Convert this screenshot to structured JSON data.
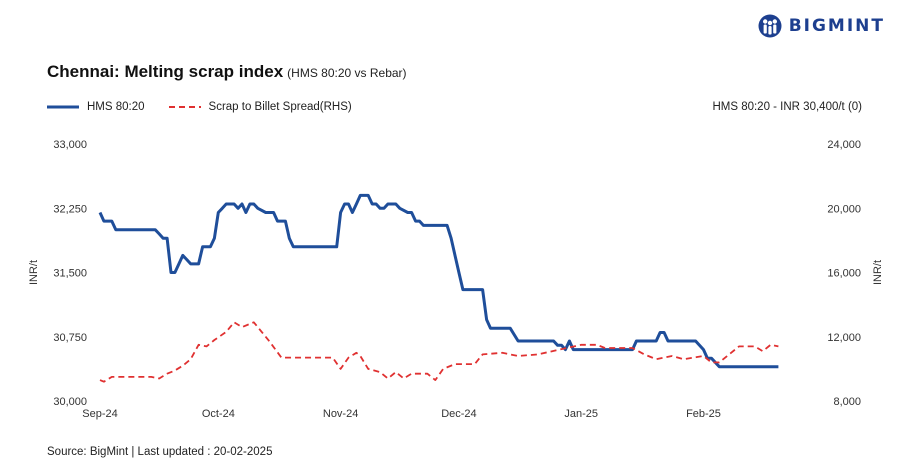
{
  "brand": {
    "name": "BIGMINT",
    "logo_icon": "bigmint-logo-icon",
    "color": "#1d3f8f"
  },
  "header": {
    "title": "Chennai: Melting scrap index",
    "subtitle": "(HMS 80:20  vs Rebar)"
  },
  "legend": {
    "series1": "HMS 80:20",
    "series2": "Scrap to Billet Spread(RHS)",
    "current_value": "HMS 80:20 - INR 30,400/t (0)"
  },
  "footer": {
    "source": "Source: BigMint | Last updated : 20-02-2025"
  },
  "chart_data": {
    "type": "line",
    "left_axis": {
      "label": "INR/t",
      "range": [
        30000,
        33000
      ],
      "ticks": [
        "30,000",
        "30,750",
        "31,500",
        "32,250",
        "33,000"
      ]
    },
    "right_axis": {
      "label": "INR/t",
      "range": [
        8000,
        24000
      ],
      "ticks": [
        "8,000",
        "12,000",
        "16,000",
        "20,000",
        "24,000"
      ]
    },
    "x_axis": {
      "range": [
        "2024-09-01",
        "2025-02-28"
      ],
      "ticks": [
        {
          "label": "Sep-24",
          "date": "2024-09-01"
        },
        {
          "label": "Oct-24",
          "date": "2024-10-01"
        },
        {
          "label": "Nov-24",
          "date": "2024-11-01"
        },
        {
          "label": "Dec-24",
          "date": "2024-12-01"
        },
        {
          "label": "Jan-25",
          "date": "2025-01-01"
        },
        {
          "label": "Feb-25",
          "date": "2025-02-01"
        }
      ]
    },
    "grid": false,
    "legend_position": "top-left",
    "series": [
      {
        "name": "HMS 80:20",
        "axis": "left",
        "color": "#1f4e9a",
        "style": "solid",
        "points": [
          [
            "2024-09-01",
            32200
          ],
          [
            "2024-09-02",
            32100
          ],
          [
            "2024-09-04",
            32100
          ],
          [
            "2024-09-05",
            32000
          ],
          [
            "2024-09-07",
            32000
          ],
          [
            "2024-09-14",
            32000
          ],
          [
            "2024-09-15",
            32000
          ],
          [
            "2024-09-16",
            31950
          ],
          [
            "2024-09-17",
            31900
          ],
          [
            "2024-09-18",
            31900
          ],
          [
            "2024-09-19",
            31500
          ],
          [
            "2024-09-20",
            31500
          ],
          [
            "2024-09-21",
            31600
          ],
          [
            "2024-09-22",
            31700
          ],
          [
            "2024-09-23",
            31650
          ],
          [
            "2024-09-24",
            31600
          ],
          [
            "2024-09-25",
            31600
          ],
          [
            "2024-09-26",
            31600
          ],
          [
            "2024-09-27",
            31800
          ],
          [
            "2024-09-28",
            31800
          ],
          [
            "2024-09-29",
            31800
          ],
          [
            "2024-09-30",
            31900
          ],
          [
            "2024-10-01",
            32200
          ],
          [
            "2024-10-02",
            32250
          ],
          [
            "2024-10-03",
            32300
          ],
          [
            "2024-10-04",
            32300
          ],
          [
            "2024-10-05",
            32300
          ],
          [
            "2024-10-06",
            32250
          ],
          [
            "2024-10-07",
            32300
          ],
          [
            "2024-10-08",
            32200
          ],
          [
            "2024-10-09",
            32300
          ],
          [
            "2024-10-10",
            32300
          ],
          [
            "2024-10-11",
            32250
          ],
          [
            "2024-10-13",
            32200
          ],
          [
            "2024-10-15",
            32200
          ],
          [
            "2024-10-16",
            32100
          ],
          [
            "2024-10-18",
            32100
          ],
          [
            "2024-10-19",
            31900
          ],
          [
            "2024-10-20",
            31800
          ],
          [
            "2024-10-22",
            31800
          ],
          [
            "2024-10-30",
            31800
          ],
          [
            "2024-10-31",
            31800
          ],
          [
            "2024-11-01",
            32200
          ],
          [
            "2024-11-02",
            32300
          ],
          [
            "2024-11-03",
            32300
          ],
          [
            "2024-11-04",
            32200
          ],
          [
            "2024-11-05",
            32300
          ],
          [
            "2024-11-06",
            32400
          ],
          [
            "2024-11-07",
            32400
          ],
          [
            "2024-11-08",
            32400
          ],
          [
            "2024-11-09",
            32300
          ],
          [
            "2024-11-10",
            32300
          ],
          [
            "2024-11-11",
            32250
          ],
          [
            "2024-11-12",
            32250
          ],
          [
            "2024-11-13",
            32300
          ],
          [
            "2024-11-14",
            32300
          ],
          [
            "2024-11-15",
            32300
          ],
          [
            "2024-11-16",
            32250
          ],
          [
            "2024-11-18",
            32200
          ],
          [
            "2024-11-19",
            32200
          ],
          [
            "2024-11-20",
            32100
          ],
          [
            "2024-11-21",
            32100
          ],
          [
            "2024-11-22",
            32050
          ],
          [
            "2024-11-23",
            32050
          ],
          [
            "2024-11-28",
            32050
          ],
          [
            "2024-11-29",
            31900
          ],
          [
            "2024-11-30",
            31700
          ],
          [
            "2024-12-01",
            31500
          ],
          [
            "2024-12-02",
            31300
          ],
          [
            "2024-12-03",
            31300
          ],
          [
            "2024-12-07",
            31300
          ],
          [
            "2024-12-08",
            30950
          ],
          [
            "2024-12-09",
            30850
          ],
          [
            "2024-12-10",
            30850
          ],
          [
            "2024-12-11",
            30850
          ],
          [
            "2024-12-14",
            30850
          ],
          [
            "2024-12-16",
            30700
          ],
          [
            "2024-12-20",
            30700
          ],
          [
            "2024-12-24",
            30700
          ],
          [
            "2024-12-25",
            30700
          ],
          [
            "2024-12-26",
            30650
          ],
          [
            "2024-12-27",
            30650
          ],
          [
            "2024-12-28",
            30600
          ],
          [
            "2024-12-29",
            30700
          ],
          [
            "2024-12-30",
            30600
          ],
          [
            "2025-01-01",
            30600
          ],
          [
            "2025-01-06",
            30600
          ],
          [
            "2025-01-14",
            30600
          ],
          [
            "2025-01-15",
            30700
          ],
          [
            "2025-01-18",
            30700
          ],
          [
            "2025-01-20",
            30700
          ],
          [
            "2025-01-21",
            30800
          ],
          [
            "2025-01-22",
            30800
          ],
          [
            "2025-01-23",
            30700
          ],
          [
            "2025-01-25",
            30700
          ],
          [
            "2025-01-28",
            30700
          ],
          [
            "2025-01-30",
            30700
          ],
          [
            "2025-02-01",
            30600
          ],
          [
            "2025-02-02",
            30500
          ],
          [
            "2025-02-03",
            30500
          ],
          [
            "2025-02-05",
            30400
          ],
          [
            "2025-02-06",
            30400
          ],
          [
            "2025-02-08",
            30400
          ],
          [
            "2025-02-20",
            30400
          ]
        ]
      },
      {
        "name": "Scrap to Billet Spread(RHS)",
        "axis": "right",
        "color": "#e03131",
        "style": "dashed",
        "points": [
          [
            "2024-09-01",
            9300
          ],
          [
            "2024-09-02",
            9200
          ],
          [
            "2024-09-04",
            9500
          ],
          [
            "2024-09-14",
            9500
          ],
          [
            "2024-09-16",
            9400
          ],
          [
            "2024-09-18",
            9700
          ],
          [
            "2024-09-20",
            9900
          ],
          [
            "2024-09-22",
            10200
          ],
          [
            "2024-09-24",
            10600
          ],
          [
            "2024-09-26",
            11500
          ],
          [
            "2024-09-28",
            11400
          ],
          [
            "2024-09-30",
            11800
          ],
          [
            "2024-10-03",
            12300
          ],
          [
            "2024-10-05",
            12900
          ],
          [
            "2024-10-07",
            12600
          ],
          [
            "2024-10-10",
            12900
          ],
          [
            "2024-10-12",
            12300
          ],
          [
            "2024-10-14",
            11700
          ],
          [
            "2024-10-17",
            10700
          ],
          [
            "2024-10-24",
            10700
          ],
          [
            "2024-10-30",
            10700
          ],
          [
            "2024-11-01",
            10000
          ],
          [
            "2024-11-03",
            10700
          ],
          [
            "2024-11-05",
            11000
          ],
          [
            "2024-11-06",
            10800
          ],
          [
            "2024-11-08",
            10000
          ],
          [
            "2024-11-11",
            9800
          ],
          [
            "2024-11-13",
            9400
          ],
          [
            "2024-11-15",
            9800
          ],
          [
            "2024-11-17",
            9400
          ],
          [
            "2024-11-19",
            9700
          ],
          [
            "2024-11-23",
            9700
          ],
          [
            "2024-11-25",
            9300
          ],
          [
            "2024-11-27",
            10000
          ],
          [
            "2024-11-30",
            10300
          ],
          [
            "2024-12-05",
            10300
          ],
          [
            "2024-12-07",
            10900
          ],
          [
            "2024-12-12",
            11000
          ],
          [
            "2024-12-16",
            10800
          ],
          [
            "2024-12-21",
            10900
          ],
          [
            "2025-01-01",
            11500
          ],
          [
            "2025-01-05",
            11500
          ],
          [
            "2025-01-07",
            11300
          ],
          [
            "2025-01-14",
            11300
          ],
          [
            "2025-01-17",
            10900
          ],
          [
            "2025-01-20",
            10600
          ],
          [
            "2025-01-24",
            10800
          ],
          [
            "2025-01-27",
            10600
          ],
          [
            "2025-02-01",
            10800
          ],
          [
            "2025-02-03",
            10400
          ],
          [
            "2025-02-05",
            10400
          ],
          [
            "2025-02-08",
            11000
          ],
          [
            "2025-02-10",
            11400
          ],
          [
            "2025-02-14",
            11400
          ],
          [
            "2025-02-16",
            11100
          ],
          [
            "2025-02-18",
            11500
          ],
          [
            "2025-02-20",
            11400
          ]
        ]
      }
    ]
  }
}
